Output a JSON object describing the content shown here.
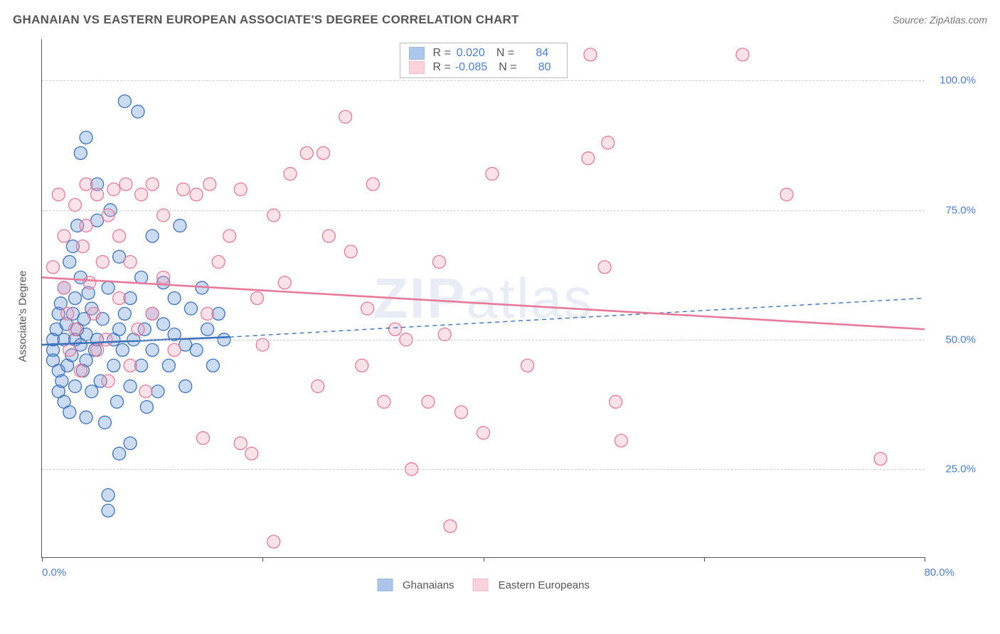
{
  "title": "GHANAIAN VS EASTERN EUROPEAN ASSOCIATE'S DEGREE CORRELATION CHART",
  "source": "Source: ZipAtlas.com",
  "watermark": "ZIPatlas",
  "ylabel": "Associate's Degree",
  "chart": {
    "type": "scatter",
    "background_color": "#ffffff",
    "grid_color": "#cccccc",
    "axis_color": "#555555",
    "xlim": [
      0,
      80
    ],
    "ylim": [
      8,
      108
    ],
    "xtick_positions": [
      0,
      20,
      40,
      60,
      80
    ],
    "xtick_label_start": "0.0%",
    "xtick_label_end": "80.0%",
    "yticks": [
      {
        "v": 25,
        "label": "25.0%"
      },
      {
        "v": 50,
        "label": "50.0%"
      },
      {
        "v": 75,
        "label": "75.0%"
      },
      {
        "v": 100,
        "label": "100.0%"
      }
    ],
    "tick_label_color": "#4a7fd6",
    "tick_fontsize": 15,
    "title_fontsize": 17,
    "marker_radius": 9,
    "marker_stroke_width": 1.3,
    "marker_fill_opacity": 0.32,
    "trend_line_width": 2.6,
    "trend_dash_width": 1.4,
    "trend_dash_pattern": "6,5",
    "series": [
      {
        "name": "Ghanaians",
        "color": "#5a8fd6",
        "stroke": "#3d72bd",
        "R": "0.020",
        "N": "84",
        "trend_solid": {
          "x1": 0,
          "y1": 49,
          "x2": 17,
          "y2": 50.5
        },
        "trend_dash": {
          "x1": 17,
          "y1": 50.5,
          "x2": 80,
          "y2": 58
        },
        "points": [
          [
            1,
            48
          ],
          [
            1,
            50
          ],
          [
            1,
            46
          ],
          [
            1.3,
            52
          ],
          [
            1.5,
            44
          ],
          [
            1.5,
            55
          ],
          [
            1.5,
            40
          ],
          [
            1.7,
            57
          ],
          [
            1.8,
            42
          ],
          [
            2,
            60
          ],
          [
            2,
            38
          ],
          [
            2,
            50
          ],
          [
            2.2,
            53
          ],
          [
            2.3,
            45
          ],
          [
            2.5,
            65
          ],
          [
            2.5,
            36
          ],
          [
            2.7,
            47
          ],
          [
            2.8,
            55
          ],
          [
            3,
            50
          ],
          [
            3,
            58
          ],
          [
            3,
            41
          ],
          [
            3.2,
            52
          ],
          [
            3.5,
            49
          ],
          [
            3.5,
            62
          ],
          [
            3.7,
            44
          ],
          [
            3.8,
            54
          ],
          [
            4,
            35
          ],
          [
            4,
            46
          ],
          [
            4,
            51
          ],
          [
            4.2,
            59
          ],
          [
            4.5,
            40
          ],
          [
            4.5,
            56
          ],
          [
            4.8,
            48
          ],
          [
            5,
            73
          ],
          [
            5,
            80
          ],
          [
            5,
            50
          ],
          [
            5.3,
            42
          ],
          [
            5.5,
            54
          ],
          [
            5.7,
            34
          ],
          [
            6,
            20
          ],
          [
            6,
            17
          ],
          [
            6,
            60
          ],
          [
            6.2,
            75
          ],
          [
            6.5,
            45
          ],
          [
            6.5,
            50
          ],
          [
            6.8,
            38
          ],
          [
            7,
            28
          ],
          [
            7,
            52
          ],
          [
            7,
            66
          ],
          [
            7.3,
            48
          ],
          [
            7.5,
            96
          ],
          [
            7.5,
            55
          ],
          [
            8,
            30
          ],
          [
            8,
            41
          ],
          [
            8,
            58
          ],
          [
            8.3,
            50
          ],
          [
            8.7,
            94
          ],
          [
            9,
            45
          ],
          [
            9,
            62
          ],
          [
            9.3,
            52
          ],
          [
            9.5,
            37
          ],
          [
            10,
            70
          ],
          [
            10,
            48
          ],
          [
            10,
            55
          ],
          [
            10.5,
            40
          ],
          [
            11,
            53
          ],
          [
            11,
            61
          ],
          [
            11.5,
            45
          ],
          [
            12,
            51
          ],
          [
            12,
            58
          ],
          [
            12.5,
            72
          ],
          [
            13,
            49
          ],
          [
            13,
            41
          ],
          [
            13.5,
            56
          ],
          [
            14,
            48
          ],
          [
            14.5,
            60
          ],
          [
            15,
            52
          ],
          [
            15.5,
            45
          ],
          [
            16,
            55
          ],
          [
            16.5,
            50
          ],
          [
            4,
            89
          ],
          [
            3.5,
            86
          ],
          [
            2.8,
            68
          ],
          [
            3.2,
            72
          ]
        ]
      },
      {
        "name": "Eastern Europeans",
        "color": "#f4a6ba",
        "stroke": "#e67a98",
        "R": "-0.085",
        "N": "80",
        "trend_solid": {
          "x1": 0,
          "y1": 62,
          "x2": 80,
          "y2": 52
        },
        "trend_dash": null,
        "points": [
          [
            1,
            64
          ],
          [
            1.5,
            78
          ],
          [
            2,
            70
          ],
          [
            2,
            60
          ],
          [
            2.3,
            55
          ],
          [
            2.5,
            48
          ],
          [
            3,
            76
          ],
          [
            3,
            52
          ],
          [
            3.5,
            44
          ],
          [
            3.7,
            68
          ],
          [
            4,
            80
          ],
          [
            4,
            72
          ],
          [
            4.3,
            61
          ],
          [
            4.7,
            55
          ],
          [
            5,
            78
          ],
          [
            5,
            48
          ],
          [
            5.5,
            65
          ],
          [
            5.8,
            50
          ],
          [
            6,
            74
          ],
          [
            6,
            42
          ],
          [
            6.5,
            79
          ],
          [
            7,
            70
          ],
          [
            7,
            58
          ],
          [
            7.6,
            80
          ],
          [
            8,
            45
          ],
          [
            8,
            65
          ],
          [
            8.7,
            52
          ],
          [
            9,
            78
          ],
          [
            9.4,
            40
          ],
          [
            10,
            55
          ],
          [
            10,
            80
          ],
          [
            11,
            62
          ],
          [
            11,
            74
          ],
          [
            12,
            48
          ],
          [
            12.8,
            79
          ],
          [
            14,
            78
          ],
          [
            14.6,
            31
          ],
          [
            15,
            55
          ],
          [
            15.2,
            80
          ],
          [
            16,
            65
          ],
          [
            17,
            70
          ],
          [
            18,
            79
          ],
          [
            18,
            30
          ],
          [
            19,
            28
          ],
          [
            19.5,
            58
          ],
          [
            20,
            49
          ],
          [
            21,
            74
          ],
          [
            21,
            11
          ],
          [
            22,
            61
          ],
          [
            22.5,
            82
          ],
          [
            24,
            86
          ],
          [
            25,
            41
          ],
          [
            25.5,
            86
          ],
          [
            26,
            70
          ],
          [
            27.5,
            93
          ],
          [
            28,
            67
          ],
          [
            29,
            45
          ],
          [
            29.5,
            56
          ],
          [
            30,
            80
          ],
          [
            31,
            38
          ],
          [
            32,
            52
          ],
          [
            33,
            50
          ],
          [
            33.5,
            25
          ],
          [
            35,
            38
          ],
          [
            36,
            65
          ],
          [
            36.5,
            51
          ],
          [
            37,
            14
          ],
          [
            38,
            36
          ],
          [
            40,
            32
          ],
          [
            40.8,
            82
          ],
          [
            44,
            45
          ],
          [
            49.5,
            85
          ],
          [
            49.7,
            105
          ],
          [
            51,
            64
          ],
          [
            51.3,
            88
          ],
          [
            52,
            38
          ],
          [
            52.5,
            30.5
          ],
          [
            63.5,
            105
          ],
          [
            67.5,
            78
          ],
          [
            76,
            27
          ]
        ]
      }
    ]
  },
  "bottom_legend": [
    "Ghanaians",
    "Eastern Europeans"
  ]
}
